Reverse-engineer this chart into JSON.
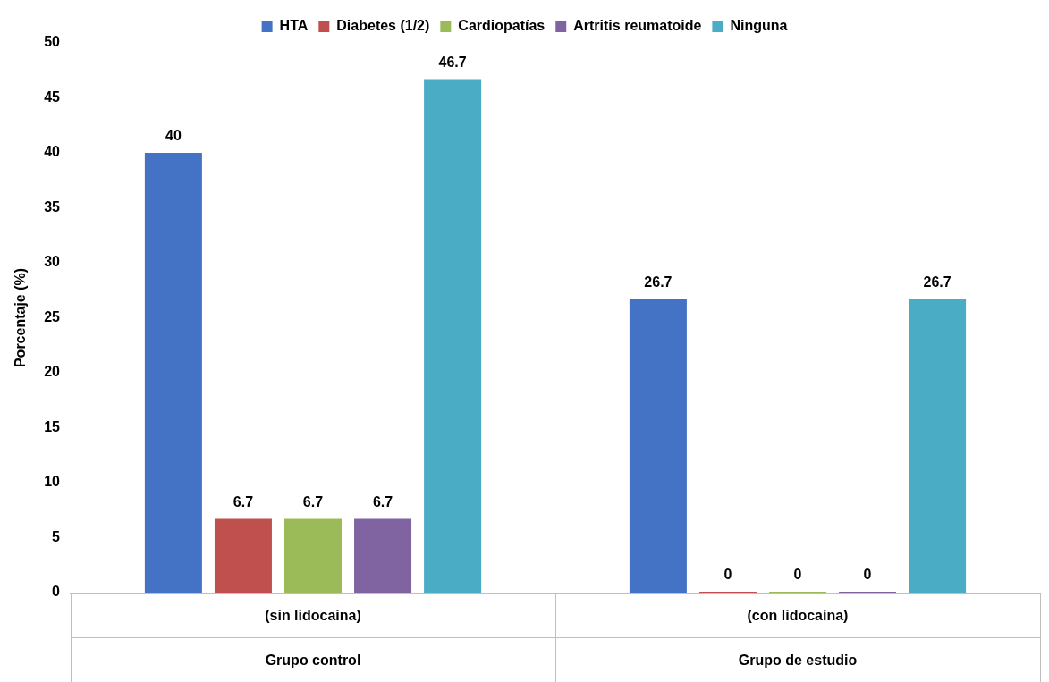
{
  "chart_data": {
    "type": "bar",
    "ylabel": "Porcentaje (%)",
    "categories": [
      "(sin lidocaina)\nGrupo control",
      "(con lidocaína)\nGrupo de estudio"
    ],
    "series": [
      {
        "name": "HTA",
        "color": "#4472c4",
        "values": [
          40,
          26.7
        ],
        "value_labels": [
          "40",
          "26.7"
        ]
      },
      {
        "name": "Diabetes (1/2)",
        "color": "#c0504d",
        "values": [
          6.7,
          0
        ],
        "value_labels": [
          "6.7",
          "0"
        ]
      },
      {
        "name": "Cardiopatías",
        "color": "#9bbb59",
        "values": [
          6.7,
          0
        ],
        "value_labels": [
          "6.7",
          "0"
        ]
      },
      {
        "name": "Artritis reumatoide",
        "color": "#8064a2",
        "values": [
          6.7,
          0
        ],
        "value_labels": [
          "6.7",
          "0"
        ]
      },
      {
        "name": "Ninguna",
        "color": "#4bacc6",
        "values": [
          46.7,
          26.7
        ],
        "value_labels": [
          "46.7",
          "26.7"
        ]
      }
    ],
    "ylim": [
      0,
      50
    ],
    "yticks": [
      0,
      5,
      10,
      15,
      20,
      25,
      30,
      35,
      40,
      45,
      50
    ],
    "grid": false,
    "legend": "top"
  }
}
